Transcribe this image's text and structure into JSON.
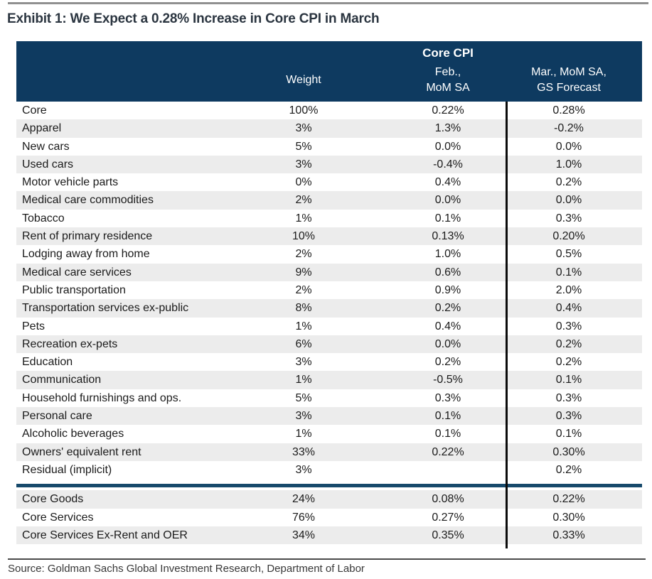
{
  "chart_data": {
    "type": "table",
    "title": "Exhibit 1: We Expect a 0.28% Increase in Core CPI in March",
    "group_header": "Core CPI",
    "header": {
      "weight": "Weight",
      "feb_line1": "Feb.,",
      "feb_line2": "MoM SA",
      "mar_line1": "Mar., MoM SA,",
      "mar_line2": "GS Forecast"
    },
    "rows": [
      {
        "label": "Core",
        "weight": "100%",
        "feb": "0.22%",
        "mar": "0.28%"
      },
      {
        "label": "Apparel",
        "weight": "3%",
        "feb": "1.3%",
        "mar": "-0.2%"
      },
      {
        "label": "New cars",
        "weight": "5%",
        "feb": "0.0%",
        "mar": "0.0%"
      },
      {
        "label": "Used cars",
        "weight": "3%",
        "feb": "-0.4%",
        "mar": "1.0%"
      },
      {
        "label": "Motor vehicle parts",
        "weight": "0%",
        "feb": "0.4%",
        "mar": "0.2%"
      },
      {
        "label": "Medical care commodities",
        "weight": "2%",
        "feb": "0.0%",
        "mar": "0.0%"
      },
      {
        "label": "Tobacco",
        "weight": "1%",
        "feb": "0.1%",
        "mar": "0.3%"
      },
      {
        "label": "Rent of primary residence",
        "weight": "10%",
        "feb": "0.13%",
        "mar": "0.20%"
      },
      {
        "label": "Lodging away from home",
        "weight": "2%",
        "feb": "1.0%",
        "mar": "0.5%"
      },
      {
        "label": "Medical care services",
        "weight": "9%",
        "feb": "0.6%",
        "mar": "0.1%"
      },
      {
        "label": "Public transportation",
        "weight": "2%",
        "feb": "0.9%",
        "mar": "2.0%"
      },
      {
        "label": "Transportation services ex-public",
        "weight": "8%",
        "feb": "0.2%",
        "mar": "0.4%"
      },
      {
        "label": "Pets",
        "weight": "1%",
        "feb": "0.4%",
        "mar": "0.3%"
      },
      {
        "label": "Recreation ex-pets",
        "weight": "6%",
        "feb": "0.0%",
        "mar": "0.2%"
      },
      {
        "label": "Education",
        "weight": "3%",
        "feb": "0.2%",
        "mar": "0.2%"
      },
      {
        "label": "Communication",
        "weight": "1%",
        "feb": "-0.5%",
        "mar": "0.1%"
      },
      {
        "label": "Household furnishings and ops.",
        "weight": "5%",
        "feb": "0.3%",
        "mar": "0.3%"
      },
      {
        "label": "Personal care",
        "weight": "3%",
        "feb": "0.1%",
        "mar": "0.3%"
      },
      {
        "label": "Alcoholic beverages",
        "weight": "1%",
        "feb": "0.1%",
        "mar": "0.1%"
      },
      {
        "label": "Owners' equivalent rent",
        "weight": "33%",
        "feb": "0.22%",
        "mar": "0.30%"
      },
      {
        "label": "Residual (implicit)",
        "weight": "3%",
        "feb": "",
        "mar": "0.2%"
      }
    ],
    "summary_rows": [
      {
        "label": "Core Goods",
        "weight": "24%",
        "feb": "0.08%",
        "mar": "0.22%"
      },
      {
        "label": "Core Services",
        "weight": "76%",
        "feb": "0.27%",
        "mar": "0.30%"
      },
      {
        "label": "Core Services Ex-Rent and OER",
        "weight": "34%",
        "feb": "0.35%",
        "mar": "0.33%"
      }
    ],
    "source": "Source: Goldman Sachs Global Investment Research, Department of Labor",
    "layout": {
      "grid": "off",
      "striped_rows": true,
      "column_rule_between": [
        "Feb., MoM SA",
        "Mar., MoM SA, GS Forecast"
      ]
    },
    "colors": {
      "header_bg": "#0e3a60",
      "row_stripe": "#ececec",
      "section_divider": "#17496b",
      "column_rule": "#0b0b0b",
      "title_text": "#2b3540",
      "body_text": "#1b1b1b",
      "source_text": "#383838"
    }
  }
}
